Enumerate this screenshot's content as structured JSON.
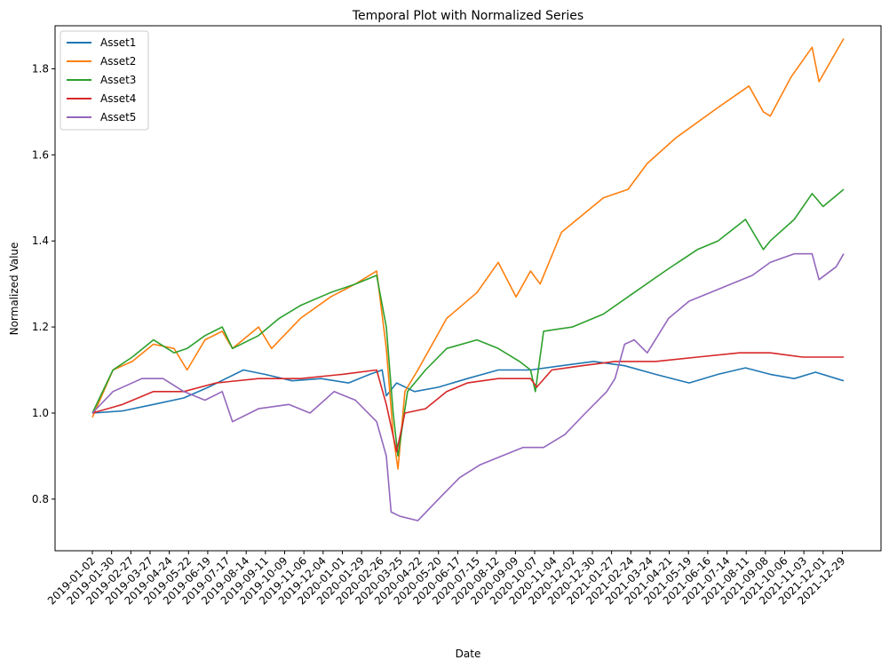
{
  "chart_data": {
    "type": "line",
    "title": "Temporal Plot with Normalized Series",
    "xlabel": "Date",
    "ylabel": "Normalized Value",
    "x_range": [
      "2019-01-02",
      "2021-12-31"
    ],
    "ylim": [
      0.68,
      1.9
    ],
    "yticks": [
      0.8,
      1.0,
      1.2,
      1.4,
      1.6,
      1.8
    ],
    "ytick_labels": [
      "0.8",
      "1.0",
      "1.2",
      "1.4",
      "1.6",
      "1.8"
    ],
    "xticks": [
      "2019-01-02",
      "2019-01-30",
      "2019-02-27",
      "2019-03-27",
      "2019-04-24",
      "2019-05-22",
      "2019-06-19",
      "2019-07-17",
      "2019-08-14",
      "2019-09-11",
      "2019-10-09",
      "2019-11-06",
      "2019-12-04",
      "2020-01-01",
      "2020-01-29",
      "2020-02-26",
      "2020-03-25",
      "2020-04-22",
      "2020-05-20",
      "2020-06-17",
      "2020-07-15",
      "2020-08-12",
      "2020-09-09",
      "2020-10-07",
      "2020-11-04",
      "2020-12-02",
      "2020-12-30",
      "2021-01-27",
      "2021-02-24",
      "2021-03-24",
      "2021-04-21",
      "2021-05-19",
      "2021-06-16",
      "2021-07-14",
      "2021-08-11",
      "2021-09-08",
      "2021-10-06",
      "2021-11-03",
      "2021-12-01",
      "2021-12-29"
    ],
    "grid": false,
    "legend_position": "upper left",
    "series": [
      {
        "name": "Asset1",
        "color": "#1f77b4",
        "dates": [
          "2019-01-02",
          "2019-02-15",
          "2019-04-01",
          "2019-05-15",
          "2019-06-20",
          "2019-08-10",
          "2019-09-10",
          "2019-10-20",
          "2019-12-01",
          "2020-01-10",
          "2020-02-10",
          "2020-02-28",
          "2020-03-05",
          "2020-03-20",
          "2020-04-15",
          "2020-05-20",
          "2020-07-01",
          "2020-08-15",
          "2020-10-01",
          "2020-11-15",
          "2021-01-01",
          "2021-02-15",
          "2021-04-01",
          "2021-05-20",
          "2021-07-01",
          "2021-08-10",
          "2021-09-15",
          "2021-10-20",
          "2021-11-20",
          "2021-12-31"
        ],
        "values": [
          1.0,
          1.005,
          1.02,
          1.035,
          1.06,
          1.1,
          1.09,
          1.075,
          1.08,
          1.07,
          1.09,
          1.1,
          1.04,
          1.07,
          1.05,
          1.06,
          1.08,
          1.1,
          1.1,
          1.11,
          1.12,
          1.11,
          1.09,
          1.07,
          1.09,
          1.105,
          1.09,
          1.08,
          1.095,
          1.075
        ]
      },
      {
        "name": "Asset2",
        "color": "#ff7f0e",
        "dates": [
          "2019-01-02",
          "2019-02-01",
          "2019-03-01",
          "2019-04-01",
          "2019-05-01",
          "2019-05-20",
          "2019-06-15",
          "2019-07-10",
          "2019-07-25",
          "2019-09-01",
          "2019-09-20",
          "2019-11-01",
          "2019-12-15",
          "2020-01-20",
          "2020-02-20",
          "2020-03-05",
          "2020-03-15",
          "2020-03-22",
          "2020-04-01",
          "2020-04-20",
          "2020-06-01",
          "2020-07-15",
          "2020-08-15",
          "2020-09-10",
          "2020-10-01",
          "2020-10-15",
          "2020-11-15",
          "2021-01-15",
          "2021-02-20",
          "2021-03-20",
          "2021-05-01",
          "2021-07-01",
          "2021-08-15",
          "2021-09-05",
          "2021-09-15",
          "2021-10-15",
          "2021-11-15",
          "2021-11-25",
          "2021-12-20",
          "2021-12-31"
        ],
        "values": [
          0.99,
          1.1,
          1.12,
          1.16,
          1.15,
          1.1,
          1.17,
          1.19,
          1.15,
          1.2,
          1.15,
          1.22,
          1.27,
          1.3,
          1.33,
          1.15,
          0.95,
          0.87,
          1.05,
          1.1,
          1.22,
          1.28,
          1.35,
          1.27,
          1.33,
          1.3,
          1.42,
          1.5,
          1.52,
          1.58,
          1.64,
          1.71,
          1.76,
          1.7,
          1.69,
          1.78,
          1.85,
          1.77,
          1.84,
          1.87
        ]
      },
      {
        "name": "Asset3",
        "color": "#2ca02c",
        "dates": [
          "2019-01-02",
          "2019-02-01",
          "2019-03-01",
          "2019-04-01",
          "2019-05-01",
          "2019-05-20",
          "2019-06-15",
          "2019-07-10",
          "2019-07-25",
          "2019-09-01",
          "2019-10-01",
          "2019-11-01",
          "2019-12-15",
          "2020-01-20",
          "2020-02-20",
          "2020-03-05",
          "2020-03-15",
          "2020-03-22",
          "2020-04-05",
          "2020-05-01",
          "2020-06-01",
          "2020-07-15",
          "2020-08-15",
          "2020-09-15",
          "2020-10-01",
          "2020-10-08",
          "2020-10-20",
          "2020-12-01",
          "2021-01-15",
          "2021-03-01",
          "2021-04-15",
          "2021-06-01",
          "2021-07-01",
          "2021-08-10",
          "2021-09-05",
          "2021-09-15",
          "2021-10-20",
          "2021-11-15",
          "2021-12-01",
          "2021-12-31"
        ],
        "values": [
          1.0,
          1.1,
          1.13,
          1.17,
          1.14,
          1.15,
          1.18,
          1.2,
          1.15,
          1.18,
          1.22,
          1.25,
          1.28,
          1.3,
          1.32,
          1.2,
          1.0,
          0.9,
          1.05,
          1.1,
          1.15,
          1.17,
          1.15,
          1.12,
          1.1,
          1.05,
          1.19,
          1.2,
          1.23,
          1.28,
          1.33,
          1.38,
          1.4,
          1.45,
          1.38,
          1.4,
          1.45,
          1.51,
          1.48,
          1.52
        ]
      },
      {
        "name": "Asset4",
        "color": "#d62728",
        "dates": [
          "2019-01-02",
          "2019-02-15",
          "2019-04-01",
          "2019-05-15",
          "2019-07-01",
          "2019-09-01",
          "2019-11-01",
          "2020-01-01",
          "2020-02-20",
          "2020-03-05",
          "2020-03-20",
          "2020-04-01",
          "2020-05-01",
          "2020-06-01",
          "2020-07-01",
          "2020-08-15",
          "2020-10-01",
          "2020-10-10",
          "2020-11-01",
          "2020-12-15",
          "2021-02-01",
          "2021-04-01",
          "2021-06-01",
          "2021-08-01",
          "2021-09-15",
          "2021-11-01",
          "2021-12-31"
        ],
        "values": [
          1.0,
          1.02,
          1.05,
          1.05,
          1.07,
          1.08,
          1.08,
          1.09,
          1.1,
          1.02,
          0.91,
          1.0,
          1.01,
          1.05,
          1.07,
          1.08,
          1.08,
          1.06,
          1.1,
          1.11,
          1.12,
          1.12,
          1.13,
          1.14,
          1.14,
          1.13,
          1.13
        ]
      },
      {
        "name": "Asset5",
        "color": "#9467bd",
        "dates": [
          "2019-01-02",
          "2019-02-01",
          "2019-03-15",
          "2019-04-15",
          "2019-05-15",
          "2019-06-15",
          "2019-07-10",
          "2019-07-25",
          "2019-09-01",
          "2019-10-15",
          "2019-11-15",
          "2019-12-20",
          "2020-01-20",
          "2020-02-20",
          "2020-03-05",
          "2020-03-12",
          "2020-03-25",
          "2020-04-20",
          "2020-05-20",
          "2020-06-20",
          "2020-07-20",
          "2020-08-20",
          "2020-09-20",
          "2020-10-20",
          "2020-11-20",
          "2020-12-20",
          "2021-01-20",
          "2021-02-01",
          "2021-02-15",
          "2021-03-01",
          "2021-03-20",
          "2021-04-20",
          "2021-05-20",
          "2021-06-20",
          "2021-07-20",
          "2021-08-20",
          "2021-09-15",
          "2021-10-20",
          "2021-11-15",
          "2021-11-25",
          "2021-12-20",
          "2021-12-31"
        ],
        "values": [
          1.0,
          1.05,
          1.08,
          1.08,
          1.05,
          1.03,
          1.05,
          0.98,
          1.01,
          1.02,
          1.0,
          1.05,
          1.03,
          0.98,
          0.9,
          0.77,
          0.76,
          0.75,
          0.8,
          0.85,
          0.88,
          0.9,
          0.92,
          0.92,
          0.95,
          1.0,
          1.05,
          1.08,
          1.16,
          1.17,
          1.14,
          1.22,
          1.26,
          1.28,
          1.3,
          1.32,
          1.35,
          1.37,
          1.37,
          1.31,
          1.34,
          1.37
        ]
      }
    ]
  }
}
